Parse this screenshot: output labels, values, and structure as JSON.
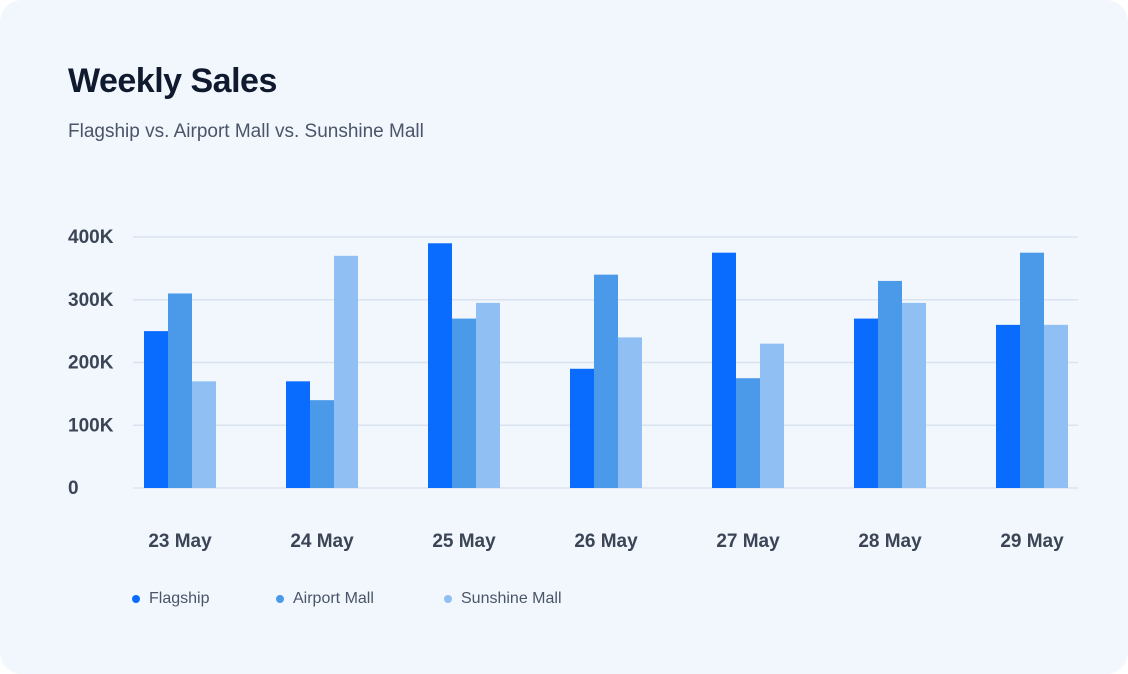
{
  "header": {
    "title": "Weekly Sales",
    "subtitle": "Flagship vs. Airport Mall vs. Sunshine Mall"
  },
  "chart_data": {
    "type": "bar",
    "title": "Weekly Sales",
    "subtitle": "Flagship vs. Airport Mall vs. Sunshine Mall",
    "xlabel": "",
    "ylabel": "",
    "categories": [
      "23 May",
      "24 May",
      "25 May",
      "26 May",
      "27 May",
      "28 May",
      "29 May"
    ],
    "series": [
      {
        "name": "Flagship",
        "color": "#0a6cff",
        "values": [
          250000,
          170000,
          390000,
          190000,
          375000,
          270000,
          260000
        ]
      },
      {
        "name": "Airport Mall",
        "color": "#4a9ae9",
        "values": [
          310000,
          140000,
          270000,
          340000,
          175000,
          330000,
          375000
        ]
      },
      {
        "name": "Sunshine Mall",
        "color": "#8fbff3",
        "values": [
          170000,
          370000,
          295000,
          240000,
          230000,
          295000,
          260000
        ]
      }
    ],
    "y_ticks": [
      {
        "value": 0,
        "label": "0"
      },
      {
        "value": 100000,
        "label": "100K"
      },
      {
        "value": 200000,
        "label": "200K"
      },
      {
        "value": 300000,
        "label": "300K"
      },
      {
        "value": 400000,
        "label": "400K"
      }
    ],
    "ylim": [
      0,
      400000
    ],
    "grid": true,
    "legend": "bottom-left"
  }
}
